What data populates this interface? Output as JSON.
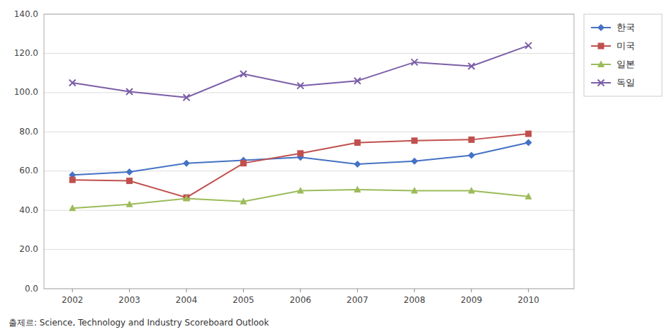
{
  "chart_data": {
    "type": "line",
    "x": [
      2002,
      2003,
      2004,
      2005,
      2006,
      2007,
      2008,
      2009,
      2010
    ],
    "xlim": [
      2001.5,
      2010.8
    ],
    "xticks": [
      2002,
      2003,
      2004,
      2005,
      2006,
      2007,
      2008,
      2009,
      2010
    ],
    "ylim": [
      0,
      140
    ],
    "yticks": [
      {
        "value": 0,
        "label": "0.0"
      },
      {
        "value": 20,
        "label": "20.0"
      },
      {
        "value": 40,
        "label": "40.0"
      },
      {
        "value": 60,
        "label": "60.0"
      },
      {
        "value": 80,
        "label": "80.0"
      },
      {
        "value": 100,
        "label": "100.0"
      },
      {
        "value": 120,
        "label": "120.0"
      },
      {
        "value": 140,
        "label": "140.0"
      }
    ],
    "grid": true,
    "legend": "upper right",
    "series": [
      {
        "name": "한국",
        "color": "#4472C4",
        "marker": "diamond",
        "values": [
          58.0,
          59.5,
          64.0,
          65.5,
          67.0,
          63.5,
          65.0,
          68.0,
          74.5
        ]
      },
      {
        "name": "미국",
        "color": "#C0504D",
        "marker": "square",
        "values": [
          55.5,
          55.0,
          46.5,
          64.0,
          69.0,
          74.5,
          75.5,
          76.0,
          79.0
        ]
      },
      {
        "name": "일본",
        "color": "#9BBB59",
        "marker": "triangle",
        "values": [
          41.0,
          43.0,
          46.0,
          44.5,
          50.0,
          50.5,
          50.0,
          50.0,
          47.0
        ]
      },
      {
        "name": "독일",
        "color": "#7B5EA7",
        "marker": "x",
        "values": [
          105.0,
          100.5,
          97.5,
          109.5,
          103.5,
          106.0,
          115.5,
          113.5,
          124.0
        ]
      }
    ],
    "annotations": [
      "출제르: Science, Technology and Industry Scoreboard Outlook"
    ]
  }
}
